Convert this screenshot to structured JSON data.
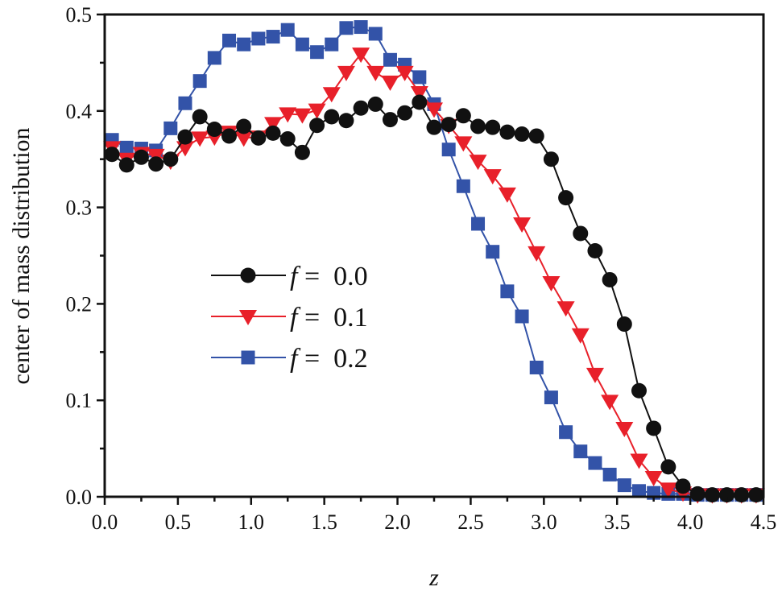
{
  "chart_data": {
    "type": "line",
    "title": "",
    "xlabel": "z",
    "ylabel": "center of mass distribution",
    "xlim": [
      0.0,
      4.5
    ],
    "ylim": [
      0.0,
      0.5
    ],
    "xticks": [
      "0.0",
      "0.5",
      "1.0",
      "1.5",
      "2.0",
      "2.5",
      "3.0",
      "3.5",
      "4.0",
      "4.5"
    ],
    "yticks": [
      "0.0",
      "0.1",
      "0.2",
      "0.3",
      "0.4",
      "0.5"
    ],
    "grid": false,
    "legend_placement": "center-left",
    "x": [
      0.05,
      0.15,
      0.25,
      0.35,
      0.45,
      0.55,
      0.65,
      0.75,
      0.85,
      0.95,
      1.05,
      1.15,
      1.25,
      1.35,
      1.45,
      1.55,
      1.65,
      1.75,
      1.85,
      1.95,
      2.05,
      2.15,
      2.25,
      2.35,
      2.45,
      2.55,
      2.65,
      2.75,
      2.85,
      2.95,
      3.05,
      3.15,
      3.25,
      3.35,
      3.45,
      3.55,
      3.65,
      3.75,
      3.85,
      3.95,
      4.05,
      4.15,
      4.25,
      4.35,
      4.45
    ],
    "series": [
      {
        "name": "f = 0.0",
        "italic": "f",
        "rest": " = 0.0",
        "color": "#111111",
        "marker": "circle",
        "values": [
          0.355,
          0.344,
          0.352,
          0.345,
          0.35,
          0.373,
          0.394,
          0.381,
          0.374,
          0.384,
          0.372,
          0.377,
          0.371,
          0.357,
          0.385,
          0.394,
          0.39,
          0.403,
          0.407,
          0.391,
          0.398,
          0.409,
          0.383,
          0.386,
          0.395,
          0.384,
          0.383,
          0.378,
          0.376,
          0.374,
          0.35,
          0.31,
          0.273,
          0.255,
          0.225,
          0.179,
          0.11,
          0.071,
          0.031,
          0.011,
          0.003,
          0.002,
          0.002,
          0.002,
          0.002
        ]
      },
      {
        "name": "f = 0.1",
        "italic": "f",
        "rest": " = 0.1",
        "color": "#e8202a",
        "marker": "triangle-down",
        "values": [
          0.362,
          0.35,
          0.356,
          0.354,
          0.348,
          0.362,
          0.372,
          0.373,
          0.378,
          0.372,
          0.373,
          0.387,
          0.397,
          0.396,
          0.401,
          0.418,
          0.44,
          0.459,
          0.44,
          0.43,
          0.44,
          0.419,
          0.402,
          0.385,
          0.367,
          0.348,
          0.333,
          0.314,
          0.283,
          0.253,
          0.222,
          0.196,
          0.168,
          0.127,
          0.099,
          0.071,
          0.038,
          0.02,
          0.008,
          0.004,
          0.002,
          0.002,
          0.002,
          0.002,
          0.002
        ]
      },
      {
        "name": "f = 0.2",
        "italic": "f",
        "rest": " = 0.2",
        "color": "#3353a8",
        "marker": "square",
        "values": [
          0.37,
          0.362,
          0.361,
          0.359,
          0.382,
          0.408,
          0.431,
          0.455,
          0.473,
          0.469,
          0.475,
          0.477,
          0.484,
          0.469,
          0.461,
          0.469,
          0.486,
          0.487,
          0.48,
          0.453,
          0.448,
          0.435,
          0.407,
          0.36,
          0.322,
          0.283,
          0.254,
          0.213,
          0.187,
          0.134,
          0.103,
          0.067,
          0.047,
          0.035,
          0.023,
          0.012,
          0.006,
          0.004,
          0.003,
          0.003,
          0.002,
          0.002,
          0.002,
          0.002,
          0.002
        ]
      }
    ]
  }
}
